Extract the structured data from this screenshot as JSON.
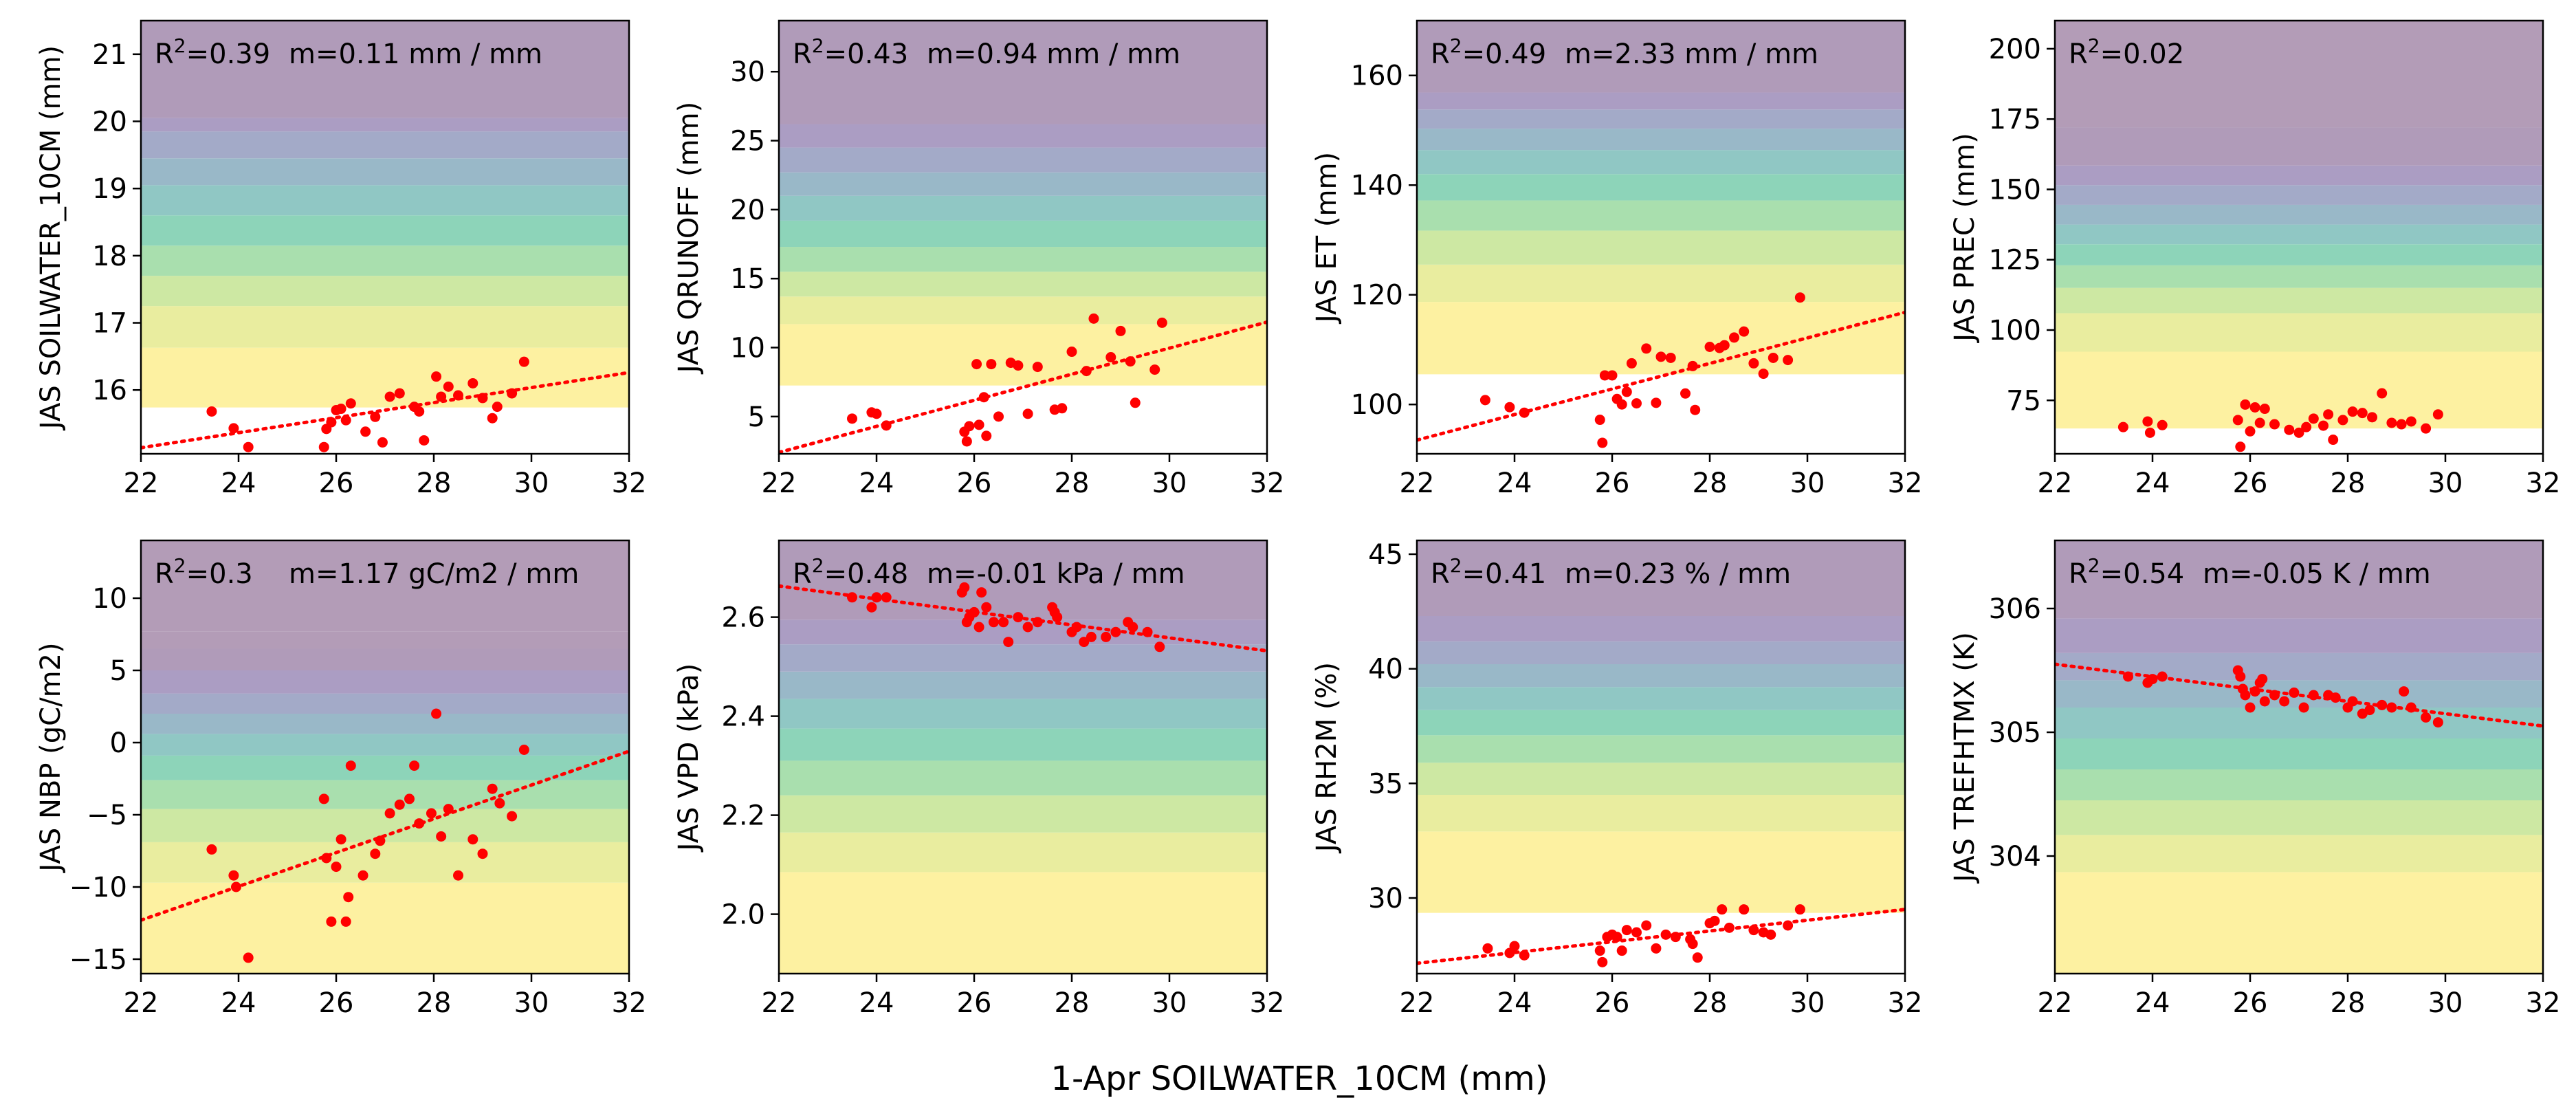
{
  "figure": {
    "xlabel": "1-Apr SOILWATER_10CM (mm)"
  },
  "band_colors": [
    "#fdf1a1",
    "#e9ed9f",
    "#cde8a3",
    "#a9dfae",
    "#8dd4b9",
    "#90c7c4",
    "#99b8c8",
    "#a3aac8",
    "#ab9dc3",
    "#b09bb9",
    "#b39cb7"
  ],
  "styles": {
    "point_color": "#ff0000",
    "trend_color": "#ff0000",
    "trend_style": "dotted"
  },
  "chart_data": [
    {
      "type": "scatter",
      "ylabel": "JAS SOILWATER_10CM (mm)",
      "stats": {
        "r2": "0.39",
        "m": "m=0.11 mm / mm"
      },
      "xlim": [
        22,
        32
      ],
      "ylim": [
        15.05,
        21.5
      ],
      "xticks": [
        22,
        24,
        26,
        28,
        30,
        32
      ],
      "yticks": [
        16,
        17,
        18,
        19,
        20,
        21
      ],
      "yticklabels": [
        "16",
        "17",
        "18",
        "19",
        "20",
        "21"
      ],
      "bands_from": 15.74,
      "bands": [
        15.74,
        16.63,
        17.25,
        17.7,
        18.15,
        18.6,
        19.05,
        19.45,
        19.85,
        20.05,
        21.5
      ],
      "trend": {
        "x": [
          22,
          32
        ],
        "y": [
          15.14,
          16.26
        ]
      },
      "points": [
        [
          23.45,
          15.68
        ],
        [
          23.9,
          15.43
        ],
        [
          24.2,
          15.15
        ],
        [
          25.75,
          15.15
        ],
        [
          25.8,
          15.42
        ],
        [
          25.9,
          15.52
        ],
        [
          26.0,
          15.7
        ],
        [
          26.1,
          15.72
        ],
        [
          26.2,
          15.55
        ],
        [
          26.3,
          15.8
        ],
        [
          26.6,
          15.38
        ],
        [
          26.8,
          15.6
        ],
        [
          26.95,
          15.22
        ],
        [
          27.1,
          15.9
        ],
        [
          27.3,
          15.95
        ],
        [
          27.6,
          15.75
        ],
        [
          27.7,
          15.68
        ],
        [
          27.8,
          15.25
        ],
        [
          28.05,
          16.2
        ],
        [
          28.15,
          15.9
        ],
        [
          28.3,
          16.05
        ],
        [
          28.5,
          15.92
        ],
        [
          28.8,
          16.1
        ],
        [
          29.0,
          15.88
        ],
        [
          29.2,
          15.58
        ],
        [
          29.3,
          15.75
        ],
        [
          29.6,
          15.95
        ],
        [
          29.85,
          16.42
        ]
      ]
    },
    {
      "type": "scatter",
      "ylabel": "JAS QRUNOFF (mm)",
      "stats": {
        "r2": "0.43",
        "m": "m=0.94 mm / mm"
      },
      "xlim": [
        22,
        32
      ],
      "ylim": [
        2.3,
        33.7
      ],
      "xticks": [
        22,
        24,
        26,
        28,
        30,
        32
      ],
      "yticks": [
        5,
        10,
        15,
        20,
        25,
        30
      ],
      "yticklabels": [
        "5",
        "10",
        "15",
        "20",
        "25",
        "30"
      ],
      "bands_from": 7.25,
      "bands": [
        7.25,
        11.7,
        13.7,
        15.5,
        17.3,
        19.2,
        21.0,
        22.7,
        24.5,
        26.2,
        33.7
      ],
      "trend": {
        "x": [
          22,
          32
        ],
        "y": [
          2.4,
          11.85
        ]
      },
      "points": [
        [
          23.5,
          4.85
        ],
        [
          23.9,
          5.3
        ],
        [
          24.0,
          5.2
        ],
        [
          24.2,
          4.35
        ],
        [
          25.8,
          3.9
        ],
        [
          25.85,
          3.2
        ],
        [
          25.9,
          4.3
        ],
        [
          26.05,
          8.8
        ],
        [
          26.1,
          4.4
        ],
        [
          26.2,
          6.4
        ],
        [
          26.25,
          3.6
        ],
        [
          26.35,
          8.8
        ],
        [
          26.5,
          5.0
        ],
        [
          26.75,
          8.9
        ],
        [
          26.9,
          8.7
        ],
        [
          27.1,
          5.2
        ],
        [
          27.3,
          8.6
        ],
        [
          27.65,
          5.5
        ],
        [
          27.8,
          5.6
        ],
        [
          28.0,
          9.7
        ],
        [
          28.3,
          8.3
        ],
        [
          28.45,
          12.1
        ],
        [
          28.8,
          9.3
        ],
        [
          29.0,
          11.2
        ],
        [
          29.2,
          9.0
        ],
        [
          29.3,
          6.0
        ],
        [
          29.7,
          8.4
        ],
        [
          29.85,
          11.8
        ]
      ]
    },
    {
      "type": "scatter",
      "ylabel": "JAS ET (mm)",
      "stats": {
        "r2": "0.49",
        "m": "m=2.33 mm / mm"
      },
      "xlim": [
        22,
        32
      ],
      "ylim": [
        91,
        170
      ],
      "xticks": [
        22,
        24,
        26,
        28,
        30,
        32
      ],
      "yticks": [
        100,
        120,
        140,
        160
      ],
      "yticklabels": [
        "100",
        "120",
        "140",
        "160"
      ],
      "bands_from": 105.5,
      "bands": [
        105.5,
        118.7,
        125.5,
        131.7,
        137.2,
        142.0,
        146.4,
        150.3,
        153.8,
        156.9,
        170
      ],
      "trend": {
        "x": [
          22,
          32
        ],
        "y": [
          93.5,
          116.8
        ]
      },
      "points": [
        [
          23.4,
          100.8
        ],
        [
          23.9,
          99.5
        ],
        [
          24.2,
          98.5
        ],
        [
          25.75,
          97.2
        ],
        [
          25.8,
          93.0
        ],
        [
          25.85,
          105.3
        ],
        [
          26.0,
          105.3
        ],
        [
          26.1,
          101.0
        ],
        [
          26.2,
          100.0
        ],
        [
          26.3,
          102.3
        ],
        [
          26.4,
          107.5
        ],
        [
          26.5,
          100.2
        ],
        [
          26.7,
          110.2
        ],
        [
          26.9,
          100.3
        ],
        [
          27.0,
          108.7
        ],
        [
          27.2,
          108.5
        ],
        [
          27.5,
          102.0
        ],
        [
          27.65,
          107.0
        ],
        [
          27.7,
          99.0
        ],
        [
          28.0,
          110.5
        ],
        [
          28.2,
          110.3
        ],
        [
          28.3,
          110.8
        ],
        [
          28.5,
          112.2
        ],
        [
          28.7,
          113.3
        ],
        [
          28.9,
          107.5
        ],
        [
          29.1,
          105.6
        ],
        [
          29.3,
          108.5
        ],
        [
          29.6,
          108.1
        ],
        [
          29.85,
          119.5
        ]
      ]
    },
    {
      "type": "scatter",
      "ylabel": "JAS PREC (mm)",
      "stats": {
        "r2": "0.02",
        "m": ""
      },
      "xlim": [
        22,
        32
      ],
      "ylim": [
        56,
        210
      ],
      "xticks": [
        22,
        24,
        26,
        28,
        30,
        32
      ],
      "yticks": [
        75,
        100,
        125,
        150,
        175,
        200
      ],
      "yticklabels": [
        "75",
        "100",
        "125",
        "150",
        "175",
        "200"
      ],
      "bands_from": 65,
      "bands": [
        65,
        92.3,
        106.0,
        115.0,
        123.0,
        130.5,
        137.5,
        144.5,
        151.5,
        158.5,
        172.0,
        210
      ],
      "trend": null,
      "points": [
        [
          23.4,
          65.5
        ],
        [
          23.9,
          67.5
        ],
        [
          23.95,
          63.5
        ],
        [
          24.2,
          66.2
        ],
        [
          25.75,
          68.0
        ],
        [
          25.8,
          58.5
        ],
        [
          25.9,
          73.5
        ],
        [
          26.0,
          64.0
        ],
        [
          26.1,
          72.5
        ],
        [
          26.2,
          67.0
        ],
        [
          26.3,
          72.0
        ],
        [
          26.5,
          66.5
        ],
        [
          26.8,
          64.5
        ],
        [
          27.0,
          63.5
        ],
        [
          27.15,
          65.5
        ],
        [
          27.3,
          68.5
        ],
        [
          27.5,
          66.0
        ],
        [
          27.6,
          70.0
        ],
        [
          27.7,
          61.0
        ],
        [
          27.9,
          68.0
        ],
        [
          28.1,
          71.0
        ],
        [
          28.3,
          70.5
        ],
        [
          28.5,
          69.0
        ],
        [
          28.7,
          77.5
        ],
        [
          28.9,
          67.0
        ],
        [
          29.1,
          66.5
        ],
        [
          29.3,
          67.5
        ],
        [
          29.6,
          65.0
        ],
        [
          29.85,
          70.0
        ]
      ]
    },
    {
      "type": "scatter",
      "ylabel": "JAS NBP (gC/m2)",
      "stats": {
        "r2": "0.3",
        "m": "m=1.17 gC/m2 / mm"
      },
      "xlim": [
        22,
        32
      ],
      "ylim": [
        -16,
        14
      ],
      "xticks": [
        22,
        24,
        26,
        28,
        30,
        32
      ],
      "yticks": [
        -15,
        -10,
        -5,
        0,
        5,
        10
      ],
      "yticklabels": [
        "−15",
        "−10",
        "−5",
        "0",
        "5",
        "10"
      ],
      "bands_from": -16,
      "bands": [
        -16,
        -9.7,
        -6.9,
        -4.6,
        -2.6,
        -0.9,
        0.6,
        2.0,
        3.4,
        5.0,
        6.5,
        7.7,
        14
      ],
      "trend": {
        "x": [
          22,
          32
        ],
        "y": [
          -12.3,
          -0.6
        ]
      },
      "points": [
        [
          23.45,
          -7.4
        ],
        [
          23.9,
          -9.2
        ],
        [
          23.95,
          -10.0
        ],
        [
          24.2,
          -14.9
        ],
        [
          25.75,
          -3.9
        ],
        [
          25.8,
          -8.0
        ],
        [
          25.9,
          -12.4
        ],
        [
          26.0,
          -8.6
        ],
        [
          26.1,
          -6.7
        ],
        [
          26.2,
          -12.4
        ],
        [
          26.25,
          -10.7
        ],
        [
          26.3,
          -1.6
        ],
        [
          26.55,
          -9.2
        ],
        [
          26.8,
          -7.7
        ],
        [
          26.9,
          -6.8
        ],
        [
          27.1,
          -4.9
        ],
        [
          27.3,
          -4.3
        ],
        [
          27.5,
          -3.9
        ],
        [
          27.6,
          -1.6
        ],
        [
          27.7,
          -5.6
        ],
        [
          27.95,
          -4.9
        ],
        [
          28.05,
          2.0
        ],
        [
          28.15,
          -6.5
        ],
        [
          28.3,
          -4.6
        ],
        [
          28.5,
          -9.2
        ],
        [
          28.8,
          -6.7
        ],
        [
          29.0,
          -7.7
        ],
        [
          29.2,
          -3.2
        ],
        [
          29.35,
          -4.2
        ],
        [
          29.6,
          -5.1
        ],
        [
          29.85,
          -0.5
        ]
      ]
    },
    {
      "type": "scatter",
      "ylabel": "JAS VPD (kPa)",
      "stats": {
        "r2": "0.48",
        "m": "m=-0.01 kPa / mm"
      },
      "xlim": [
        22,
        32
      ],
      "ylim": [
        1.88,
        2.755
      ],
      "xticks": [
        22,
        24,
        26,
        28,
        30,
        32
      ],
      "yticks": [
        2.0,
        2.2,
        2.4,
        2.6
      ],
      "yticklabels": [
        "2.0",
        "2.2",
        "2.4",
        "2.6"
      ],
      "bands_from": 1.88,
      "bands": [
        1.88,
        2.085,
        2.165,
        2.24,
        2.31,
        2.375,
        2.435,
        2.49,
        2.545,
        2.595,
        2.755
      ],
      "trend": {
        "x": [
          22,
          32
        ],
        "y": [
          2.663,
          2.532
        ]
      },
      "points": [
        [
          23.5,
          2.64
        ],
        [
          23.9,
          2.62
        ],
        [
          24.0,
          2.64
        ],
        [
          24.2,
          2.64
        ],
        [
          25.75,
          2.65
        ],
        [
          25.8,
          2.66
        ],
        [
          25.85,
          2.59
        ],
        [
          25.9,
          2.6
        ],
        [
          26.0,
          2.61
        ],
        [
          26.1,
          2.58
        ],
        [
          26.15,
          2.65
        ],
        [
          26.25,
          2.62
        ],
        [
          26.4,
          2.59
        ],
        [
          26.6,
          2.59
        ],
        [
          26.7,
          2.55
        ],
        [
          26.9,
          2.6
        ],
        [
          27.1,
          2.58
        ],
        [
          27.3,
          2.59
        ],
        [
          27.6,
          2.62
        ],
        [
          27.65,
          2.61
        ],
        [
          27.7,
          2.6
        ],
        [
          28.0,
          2.57
        ],
        [
          28.1,
          2.58
        ],
        [
          28.25,
          2.55
        ],
        [
          28.4,
          2.56
        ],
        [
          28.7,
          2.56
        ],
        [
          28.9,
          2.57
        ],
        [
          29.15,
          2.59
        ],
        [
          29.25,
          2.58
        ],
        [
          29.55,
          2.57
        ],
        [
          29.8,
          2.54
        ]
      ]
    },
    {
      "type": "scatter",
      "ylabel": "JAS RH2M (%)",
      "stats": {
        "r2": "0.41",
        "m": "m=0.23 % / mm"
      },
      "xlim": [
        22,
        32
      ],
      "ylim": [
        26.7,
        45.6
      ],
      "xticks": [
        22,
        24,
        26,
        28,
        30,
        32
      ],
      "yticks": [
        30,
        35,
        40,
        45
      ],
      "yticklabels": [
        "30",
        "35",
        "40",
        "45"
      ],
      "bands_from": 29.35,
      "bands": [
        29.35,
        32.9,
        34.5,
        35.9,
        37.1,
        38.2,
        39.2,
        40.2,
        41.2,
        42.3,
        45.6
      ],
      "trend": {
        "x": [
          22,
          32
        ],
        "y": [
          27.15,
          29.5
        ]
      },
      "points": [
        [
          23.45,
          27.8
        ],
        [
          23.9,
          27.6
        ],
        [
          24.0,
          27.9
        ],
        [
          24.2,
          27.5
        ],
        [
          25.75,
          27.7
        ],
        [
          25.8,
          27.2
        ],
        [
          25.9,
          28.3
        ],
        [
          26.0,
          28.4
        ],
        [
          26.1,
          28.3
        ],
        [
          26.2,
          27.7
        ],
        [
          26.3,
          28.6
        ],
        [
          26.5,
          28.5
        ],
        [
          26.7,
          28.8
        ],
        [
          26.9,
          27.8
        ],
        [
          27.1,
          28.4
        ],
        [
          27.3,
          28.3
        ],
        [
          27.6,
          28.2
        ],
        [
          27.65,
          28.0
        ],
        [
          27.75,
          27.4
        ],
        [
          28.0,
          28.9
        ],
        [
          28.1,
          29.0
        ],
        [
          28.25,
          29.5
        ],
        [
          28.4,
          28.7
        ],
        [
          28.7,
          29.5
        ],
        [
          28.9,
          28.6
        ],
        [
          29.1,
          28.5
        ],
        [
          29.25,
          28.4
        ],
        [
          29.6,
          28.8
        ],
        [
          29.85,
          29.5
        ]
      ]
    },
    {
      "type": "scatter",
      "ylabel": "JAS TREFHTMX (K)",
      "stats": {
        "r2": "0.54",
        "m": "m=-0.05 K / mm"
      },
      "xlim": [
        22,
        32
      ],
      "ylim": [
        303.05,
        306.55
      ],
      "xticks": [
        22,
        24,
        26,
        28,
        30,
        32
      ],
      "yticks": [
        304,
        305,
        306
      ],
      "yticklabels": [
        "304",
        "305",
        "306"
      ],
      "bands_from": 303.05,
      "bands": [
        303.05,
        303.87,
        304.17,
        304.45,
        304.7,
        304.95,
        305.2,
        305.42,
        305.64,
        305.92,
        306.55
      ],
      "trend": {
        "x": [
          22,
          32
        ],
        "y": [
          305.55,
          305.05
        ]
      },
      "points": [
        [
          23.5,
          305.45
        ],
        [
          23.9,
          305.4
        ],
        [
          24.0,
          305.43
        ],
        [
          24.2,
          305.45
        ],
        [
          25.75,
          305.5
        ],
        [
          25.8,
          305.45
        ],
        [
          25.85,
          305.35
        ],
        [
          25.9,
          305.3
        ],
        [
          26.0,
          305.2
        ],
        [
          26.1,
          305.33
        ],
        [
          26.2,
          305.4
        ],
        [
          26.25,
          305.43
        ],
        [
          26.3,
          305.25
        ],
        [
          26.5,
          305.3
        ],
        [
          26.7,
          305.25
        ],
        [
          26.9,
          305.32
        ],
        [
          27.1,
          305.2
        ],
        [
          27.3,
          305.3
        ],
        [
          27.6,
          305.3
        ],
        [
          27.75,
          305.28
        ],
        [
          28.0,
          305.2
        ],
        [
          28.1,
          305.25
        ],
        [
          28.3,
          305.15
        ],
        [
          28.45,
          305.18
        ],
        [
          28.7,
          305.22
        ],
        [
          28.9,
          305.2
        ],
        [
          29.15,
          305.33
        ],
        [
          29.3,
          305.2
        ],
        [
          29.6,
          305.12
        ],
        [
          29.85,
          305.08
        ]
      ]
    }
  ]
}
